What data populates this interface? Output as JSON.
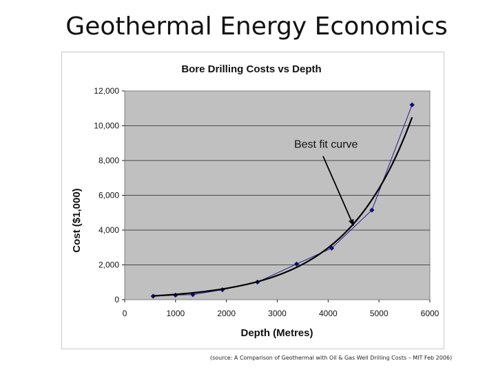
{
  "slide": {
    "title": "Geothermal Energy Economics",
    "source_note": "(source: A Comparison of Geothermal with Oil & Gas Well Drilling Costs – MIT Feb 2006)"
  },
  "chart_data": {
    "type": "scatter",
    "title": "Bore Drilling Costs vs Depth",
    "xlabel": "Depth (Metres)",
    "ylabel": "Cost ($1,000)",
    "xlim": [
      0,
      6000
    ],
    "ylim": [
      0,
      12000
    ],
    "x_ticks": [
      0,
      1000,
      2000,
      3000,
      4000,
      5000,
      6000
    ],
    "y_ticks": [
      0,
      2000,
      4000,
      6000,
      8000,
      10000,
      12000
    ],
    "x_tick_labels": [
      "0",
      "1000",
      "2000",
      "3000",
      "4000",
      "5000",
      "6000"
    ],
    "y_tick_labels": [
      "0",
      "2,000",
      "4,000",
      "6,000",
      "8,000",
      "10,000",
      "12,000"
    ],
    "grid": "horizontal",
    "plot_background": "#c0c0c0",
    "series": [
      {
        "color": "#1f1f8f",
        "marker": "diamond",
        "connected": true,
        "points": [
          {
            "x": 560,
            "y": 200
          },
          {
            "x": 1000,
            "y": 260
          },
          {
            "x": 1340,
            "y": 290
          },
          {
            "x": 1920,
            "y": 570
          },
          {
            "x": 2610,
            "y": 1010
          },
          {
            "x": 3380,
            "y": 2050
          },
          {
            "x": 4070,
            "y": 2960
          },
          {
            "x": 4860,
            "y": 5150
          },
          {
            "x": 5650,
            "y": 11200
          }
        ]
      }
    ],
    "trendline": {
      "kind": "exponential",
      "color": "#000000",
      "a": 141.5,
      "b": 0.000762,
      "x_from": 560,
      "x_to": 5650
    },
    "annotation": {
      "text": "Best fit curve",
      "arrow_from": {
        "x": 3900,
        "y": 8250
      },
      "arrow_to": {
        "x": 4500,
        "y": 4250
      }
    }
  }
}
